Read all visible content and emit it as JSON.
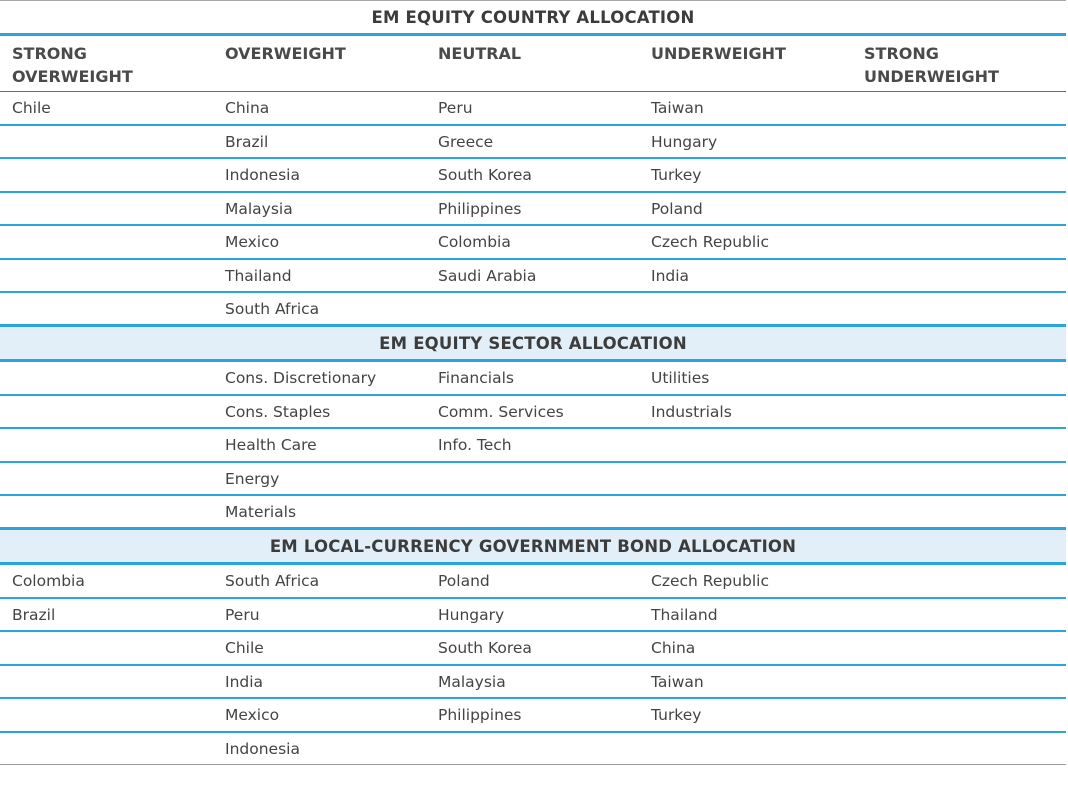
{
  "columns": [
    "STRONG OVERWEIGHT",
    "OVERWEIGHT",
    "NEUTRAL",
    "UNDERWEIGHT",
    "STRONG UNDERWEIGHT"
  ],
  "sections": [
    {
      "title": "EM EQUITY COUNTRY ALLOCATION",
      "rows": [
        [
          "Chile",
          "China",
          "Peru",
          "Taiwan",
          ""
        ],
        [
          "",
          "Brazil",
          "Greece",
          "Hungary",
          ""
        ],
        [
          "",
          "Indonesia",
          "South Korea",
          "Turkey",
          ""
        ],
        [
          "",
          "Malaysia",
          "Philippines",
          "Poland",
          ""
        ],
        [
          "",
          "Mexico",
          "Colombia",
          "Czech Republic",
          ""
        ],
        [
          "",
          "Thailand",
          "Saudi Arabia",
          "India",
          ""
        ],
        [
          "",
          "South Africa",
          "",
          "",
          ""
        ]
      ]
    },
    {
      "title": "EM EQUITY SECTOR ALLOCATION",
      "rows": [
        [
          "",
          "Cons. Discretionary",
          "Financials",
          "Utilities",
          ""
        ],
        [
          "",
          "Cons. Staples",
          "Comm. Services",
          "Industrials",
          ""
        ],
        [
          "",
          "Health Care",
          "Info. Tech",
          "",
          ""
        ],
        [
          "",
          "Energy",
          "",
          "",
          ""
        ],
        [
          "",
          "Materials",
          "",
          "",
          ""
        ]
      ]
    },
    {
      "title": "EM LOCAL-CURRENCY GOVERNMENT BOND ALLOCATION",
      "rows": [
        [
          "Colombia",
          "South Africa",
          "Poland",
          "Czech Republic",
          ""
        ],
        [
          "Brazil",
          "Peru",
          "Hungary",
          "Thailand",
          ""
        ],
        [
          "",
          "Chile",
          "South Korea",
          "China",
          ""
        ],
        [
          "",
          "India",
          "Malaysia",
          "Taiwan",
          ""
        ],
        [
          "",
          "Mexico",
          "Philippines",
          "Turkey",
          ""
        ],
        [
          "",
          "Indonesia",
          "",
          "",
          ""
        ]
      ]
    }
  ],
  "colors": {
    "accent_line": "#2aa5dc",
    "section_band": "#e3eff8",
    "text": "#444444"
  }
}
